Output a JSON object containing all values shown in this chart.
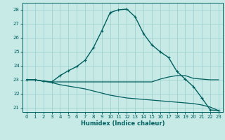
{
  "title": "",
  "xlabel": "Humidex (Indice chaleur)",
  "bg_color": "#c8eae6",
  "grid_color": "#99cccc",
  "line_color": "#005f5f",
  "xlim": [
    -0.5,
    23.5
  ],
  "ylim": [
    20.7,
    28.5
  ],
  "yticks": [
    21,
    22,
    23,
    24,
    25,
    26,
    27,
    28
  ],
  "xticks": [
    0,
    1,
    2,
    3,
    4,
    5,
    6,
    7,
    8,
    9,
    10,
    11,
    12,
    13,
    14,
    15,
    16,
    17,
    18,
    19,
    20,
    21,
    22,
    23
  ],
  "lines": [
    {
      "x": [
        0,
        1,
        2,
        3,
        4,
        5,
        6,
        7,
        8,
        9,
        10,
        11,
        12,
        13,
        14,
        15,
        16,
        17,
        18,
        19,
        20,
        21,
        22,
        23
      ],
      "y": [
        23.0,
        23.0,
        22.9,
        22.85,
        23.3,
        23.65,
        23.95,
        24.4,
        25.3,
        26.5,
        27.8,
        28.0,
        28.05,
        27.5,
        26.3,
        25.5,
        25.0,
        24.6,
        23.6,
        23.05,
        22.5,
        21.7,
        20.85,
        20.8
      ],
      "marker": "+",
      "ms": 3.5,
      "lw": 1.0
    },
    {
      "x": [
        0,
        1,
        2,
        3,
        4,
        5,
        6,
        7,
        8,
        9,
        10,
        11,
        12,
        13,
        14,
        15,
        16,
        17,
        18,
        19,
        20,
        21,
        22,
        23
      ],
      "y": [
        23.0,
        23.0,
        22.9,
        22.85,
        22.85,
        22.85,
        22.85,
        22.85,
        22.85,
        22.85,
        22.85,
        22.85,
        22.85,
        22.85,
        22.85,
        22.85,
        23.05,
        23.2,
        23.3,
        23.3,
        23.1,
        23.05,
        23.0,
        23.0
      ],
      "marker": null,
      "ms": 0,
      "lw": 0.9
    },
    {
      "x": [
        0,
        1,
        2,
        3,
        4,
        5,
        6,
        7,
        8,
        9,
        10,
        11,
        12,
        13,
        14,
        15,
        16,
        17,
        18,
        19,
        20,
        21,
        22,
        23
      ],
      "y": [
        23.0,
        23.0,
        22.9,
        22.8,
        22.65,
        22.55,
        22.45,
        22.35,
        22.2,
        22.05,
        21.9,
        21.8,
        21.7,
        21.65,
        21.6,
        21.55,
        21.5,
        21.45,
        21.4,
        21.35,
        21.3,
        21.2,
        21.05,
        20.8
      ],
      "marker": null,
      "ms": 0,
      "lw": 0.9
    }
  ]
}
